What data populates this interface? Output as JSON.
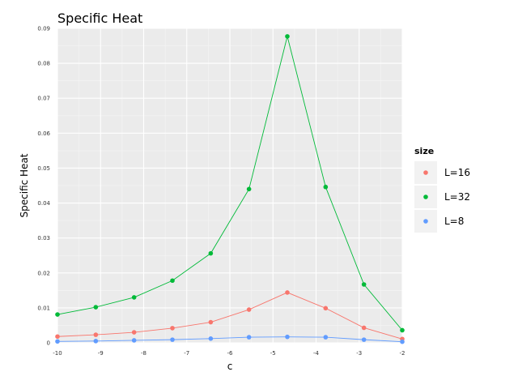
{
  "chart_data": {
    "type": "line",
    "title": "Specific Heat",
    "xlabel": "c",
    "ylabel": "Specific Heat",
    "xlim": [
      -10,
      -2
    ],
    "ylim": [
      0,
      0.09
    ],
    "x_ticks": [
      -10,
      -9,
      -8,
      -7,
      -6,
      -5,
      -4,
      -3,
      -2
    ],
    "y_ticks": [
      0,
      0.01,
      0.02,
      0.03,
      0.04,
      0.05,
      0.06,
      0.07,
      0.08,
      0.09
    ],
    "x_tick_labels": [
      "-10",
      "-9",
      "-8",
      "-7",
      "-6",
      "-5",
      "-4",
      "-3",
      "-2"
    ],
    "y_tick_labels": [
      "0",
      "0.01",
      "0.02",
      "0.03",
      "0.04",
      "0.05",
      "0.06",
      "0.07",
      "0.08",
      "0.09"
    ],
    "grid": true,
    "legend": {
      "title": "size",
      "position": "right"
    },
    "x": [
      -10,
      -9.111,
      -8.222,
      -7.333,
      -6.444,
      -5.556,
      -4.667,
      -3.778,
      -2.889,
      -2
    ],
    "series": [
      {
        "name": "L=16",
        "color": "#f8766d",
        "values": [
          0.0018,
          0.0023,
          0.003,
          0.0042,
          0.0059,
          0.0095,
          0.0144,
          0.0099,
          0.0043,
          0.0011
        ]
      },
      {
        "name": "L=32",
        "color": "#00ba38",
        "values": [
          0.0081,
          0.0102,
          0.013,
          0.0178,
          0.0256,
          0.044,
          0.0877,
          0.0446,
          0.0167,
          0.0036
        ]
      },
      {
        "name": "L=8",
        "color": "#619cff",
        "values": [
          0.0004,
          0.0005,
          0.0007,
          0.0009,
          0.0012,
          0.0016,
          0.0017,
          0.0016,
          0.0009,
          0.0003
        ]
      }
    ]
  }
}
